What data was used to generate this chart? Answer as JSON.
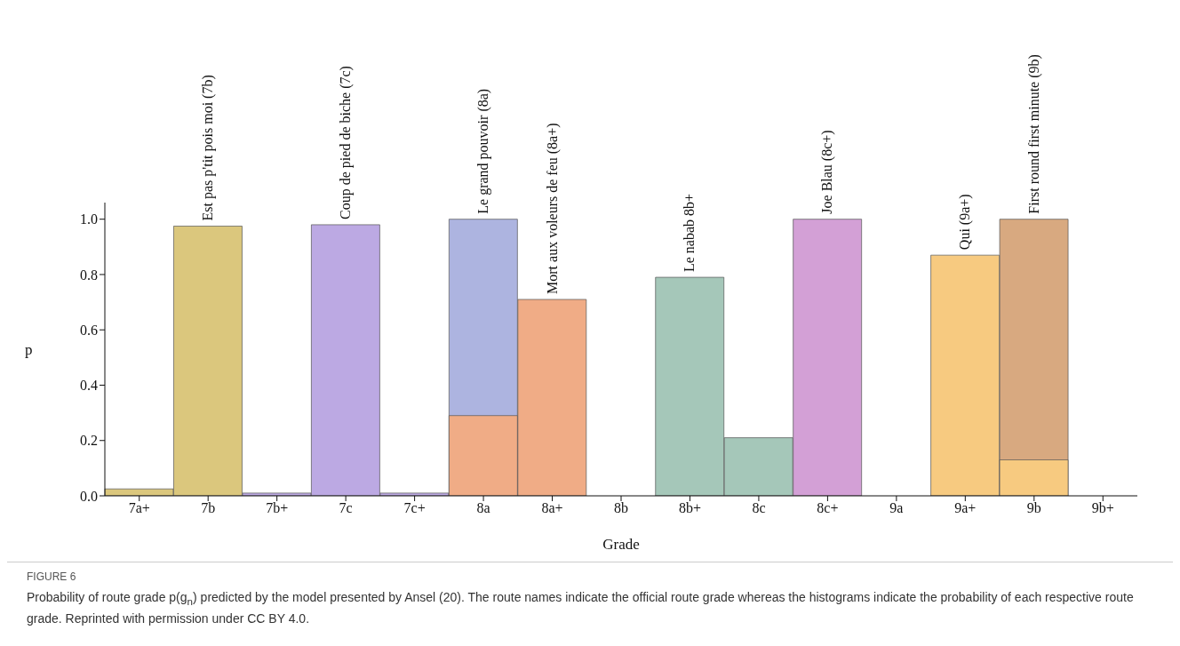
{
  "chart_data": {
    "type": "bar",
    "xlabel": "Grade",
    "ylabel": "p",
    "categories": [
      "7a+",
      "7b",
      "7b+",
      "7c",
      "7c+",
      "8a",
      "8a+",
      "8b",
      "8b+",
      "8c",
      "8c+",
      "9a",
      "9a+",
      "9b",
      "9b+"
    ],
    "series": [
      {
        "name": "Est pas p'tit pois moi (7b)",
        "color": "#dbc77d",
        "values": [
          0.025,
          0.975,
          0,
          0,
          0,
          0,
          0,
          0,
          0,
          0,
          0,
          0,
          0,
          0,
          0
        ]
      },
      {
        "name": "Coup de pied de biche (7c)",
        "color": "#bca9e3",
        "values": [
          0,
          0,
          0.01,
          0.98,
          0.01,
          0,
          0,
          0,
          0,
          0,
          0,
          0,
          0,
          0,
          0
        ]
      },
      {
        "name": "Le grand pouvoir (8a)",
        "color": "#adb4e0",
        "values": [
          0,
          0,
          0,
          0,
          0,
          1.0,
          0,
          0,
          0,
          0,
          0,
          0,
          0,
          0,
          0
        ]
      },
      {
        "name": "Mort aux voleurs de feu (8a+)",
        "color": "#f0ac86",
        "values": [
          0,
          0,
          0,
          0,
          0,
          0.29,
          0.71,
          0,
          0,
          0,
          0,
          0,
          0,
          0,
          0
        ]
      },
      {
        "name": "Le nabab 8b+",
        "color": "#a5c7b9",
        "values": [
          0,
          0,
          0,
          0,
          0,
          0,
          0,
          0,
          0.79,
          0.21,
          0,
          0,
          0,
          0,
          0
        ]
      },
      {
        "name": "Joe Blau (8c+)",
        "color": "#d3a0d6",
        "values": [
          0,
          0,
          0,
          0,
          0,
          0,
          0,
          0,
          0,
          0,
          1.0,
          0,
          0,
          0,
          0
        ]
      },
      {
        "name": "First round first minute (9b)",
        "color": "#d8a980",
        "values": [
          0,
          0,
          0,
          0,
          0,
          0,
          0,
          0,
          0,
          0,
          0,
          0,
          0,
          1.0,
          0
        ]
      },
      {
        "name": "Qui (9a+)",
        "color": "#f7ca80",
        "values": [
          0,
          0,
          0,
          0,
          0,
          0,
          0,
          0,
          0,
          0,
          0,
          0,
          0.87,
          0.13,
          0
        ]
      }
    ],
    "ylim": [
      0,
      1.06
    ],
    "yticks": [
      {
        "value": 0,
        "label": "0.0"
      },
      {
        "value": 0.2,
        "label": "0.2"
      },
      {
        "value": 0.4,
        "label": "0.4"
      },
      {
        "value": 0.6,
        "label": "0.6"
      },
      {
        "value": 0.8,
        "label": "0.8"
      },
      {
        "value": 1,
        "label": "1.0"
      }
    ],
    "grid": false,
    "legend": false,
    "annotations": [
      "FIGURE 6",
      "Probability of route grade p(g$_{n}$) predicted by the model presented by Ansel (20). The route names indicate the official route grade whereas the histograms indicate the probability of each respective route grade. Reprinted with permission under CC BY 4.0."
    ]
  }
}
